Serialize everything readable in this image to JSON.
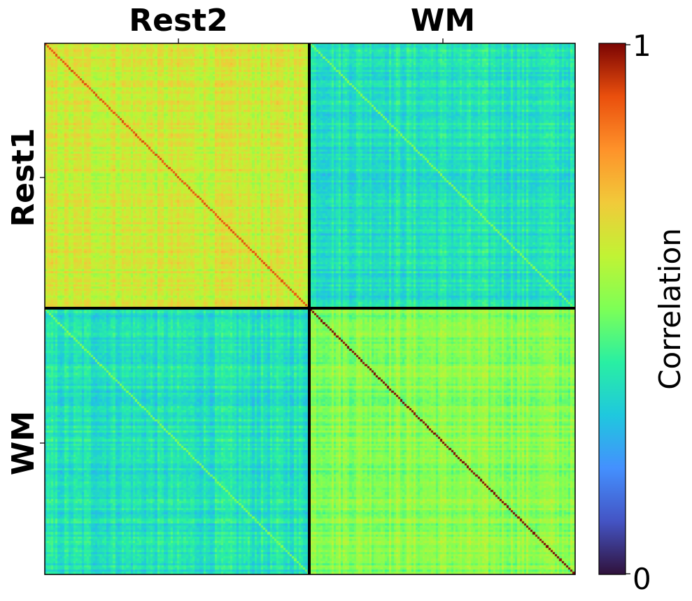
{
  "chart_data": {
    "type": "heatmap",
    "n_per_block": 120,
    "column_groups": [
      "Rest2",
      "WM"
    ],
    "row_groups": [
      "Rest1",
      "WM"
    ],
    "block_mean_correlation": [
      [
        0.62,
        0.36
      ],
      [
        0.36,
        0.52
      ]
    ],
    "diagonal_values": {
      "Rest1-Rest2": 0.9,
      "Rest1-WM": 0.5,
      "WM-Rest2": 0.5,
      "WM-WM": 1.0
    },
    "colormap": "turbo",
    "color_range": [
      0,
      1
    ],
    "colorbar": {
      "label": "Correlation",
      "ticks": [
        "0",
        "1"
      ],
      "position": "right"
    },
    "divider_color": "#000000"
  }
}
